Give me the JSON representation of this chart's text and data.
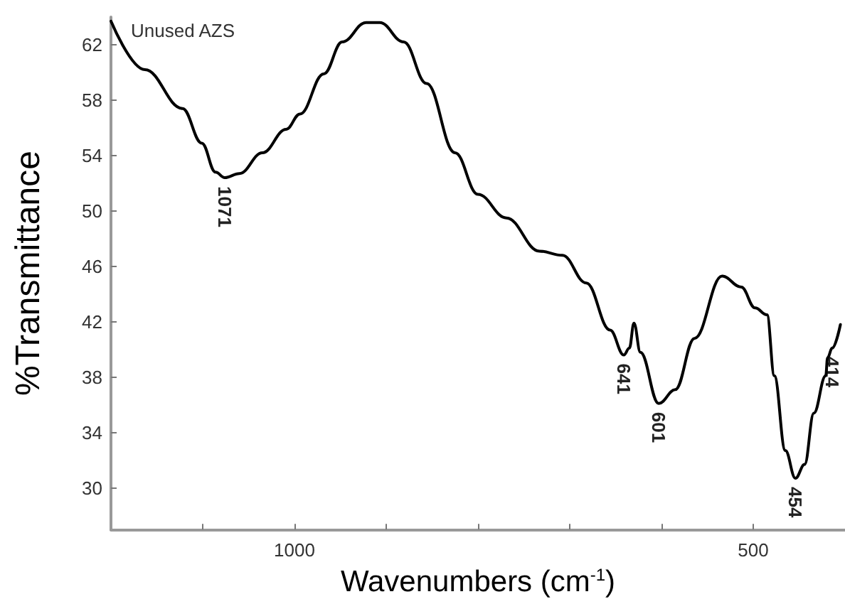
{
  "chart_data": {
    "type": "line",
    "xlabel": "Wavenumbers (cm$^{-1}$)",
    "ylabel": "%Transmittance",
    "xlim": [
      1200,
      400
    ],
    "xticks": [
      {
        "value": 1100,
        "label": null
      },
      1000,
      {
        "value": 900,
        "label": null
      },
      {
        "value": 800,
        "label": null
      },
      {
        "value": 700,
        "label": null
      },
      {
        "value": 600,
        "label": null
      },
      500
    ],
    "ylim": [
      27,
      64
    ],
    "yticks": [
      30,
      34,
      38,
      42,
      46,
      50,
      54,
      58,
      62
    ],
    "grid": false,
    "marker": "none",
    "line_style": "solid",
    "series": [
      {
        "color": "#000000",
        "x": [
          1200,
          1163,
          1122,
          1101,
          1086,
          1076,
          1060,
          1035,
          1009,
          994,
          968,
          948,
          922,
          907,
          881,
          856,
          825,
          800,
          769,
          733,
          708,
          682,
          656,
          641,
          635,
          630,
          623,
          603,
          585,
          564,
          534,
          513,
          498,
          485,
          477,
          465,
          454,
          444,
          434,
          421,
          419,
          414,
          405
        ],
        "values": [
          63.7,
          60.2,
          57.4,
          54.9,
          52.8,
          52.4,
          52.7,
          54.2,
          55.9,
          57.0,
          59.9,
          62.2,
          63.6,
          63.6,
          62.2,
          59.2,
          54.2,
          51.2,
          49.5,
          47.1,
          46.8,
          44.8,
          41.4,
          39.6,
          40.1,
          41.9,
          39.8,
          36.1,
          37.1,
          40.8,
          45.3,
          44.5,
          43.0,
          42.5,
          38.1,
          32.7,
          30.7,
          31.7,
          35.4,
          38.1,
          39.4,
          40.1,
          41.8
        ]
      }
    ],
    "annotations": [
      "Unused AZS",
      {
        "text": "1071",
        "x": 1076,
        "y": 52.4
      },
      {
        "text": "641",
        "x": 641,
        "y": 39.6
      },
      {
        "text": "601",
        "x": 603,
        "y": 36.1
      },
      {
        "text": "454",
        "x": 454,
        "y": 30.7
      },
      {
        "text": "414",
        "x": 414,
        "y": 40.1
      }
    ]
  }
}
